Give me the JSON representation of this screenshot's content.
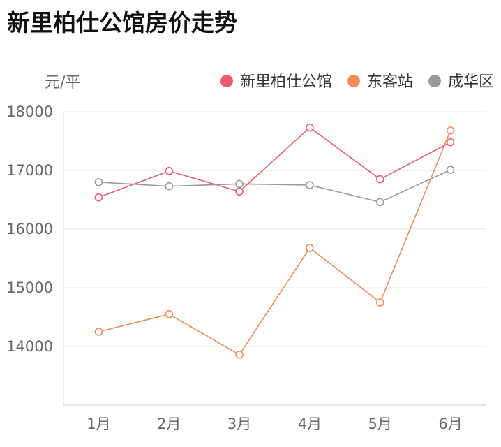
{
  "chart_data": {
    "type": "line",
    "title": "新里柏仕公馆房价走势",
    "ylabel": "元/平",
    "categories": [
      "1月",
      "2月",
      "3月",
      "4月",
      "5月",
      "6月"
    ],
    "ylim": [
      13000,
      18000
    ],
    "yticks": [
      14000,
      15000,
      16000,
      17000,
      18000
    ],
    "grid": true,
    "legend_position": "top-right",
    "series": [
      {
        "name": "新里柏仕公馆",
        "color": "#f0596e",
        "values": [
          16540,
          16990,
          16640,
          17730,
          16850,
          17480
        ]
      },
      {
        "name": "东客站",
        "color": "#f58a55",
        "values": [
          14250,
          14550,
          13860,
          15680,
          14750,
          17680
        ]
      },
      {
        "name": "成华区",
        "color": "#999999",
        "values": [
          16800,
          16730,
          16770,
          16750,
          16460,
          17010
        ]
      }
    ]
  }
}
